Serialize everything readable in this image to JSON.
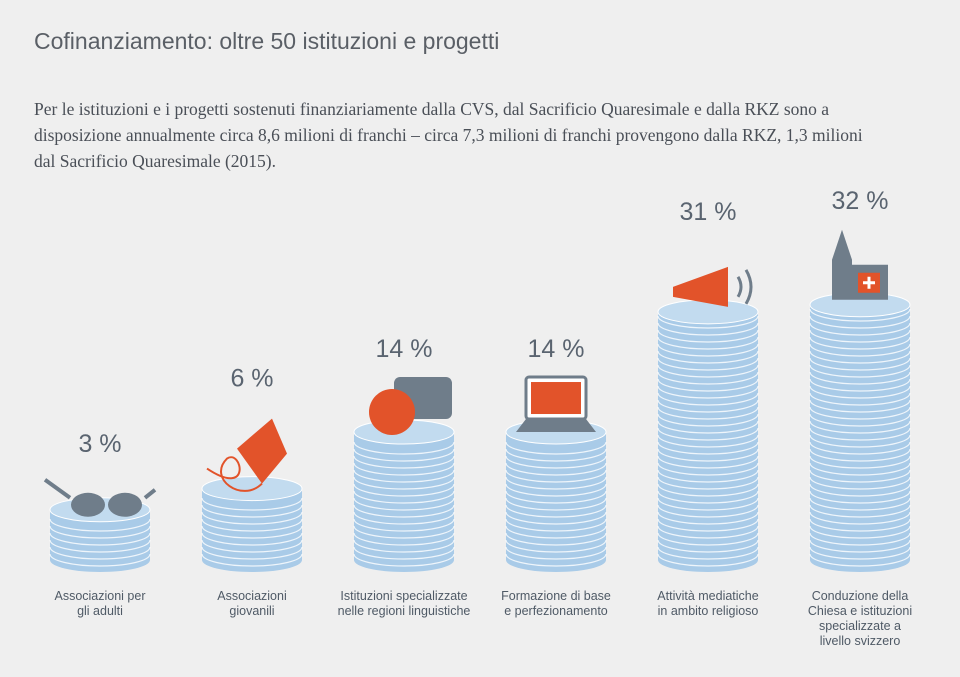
{
  "chart_data": {
    "type": "bar",
    "title": "Cofinanziamento: oltre 50 istituzioni e progetti",
    "subtitle": "Per le istituzioni e i progetti sostenuti finanziariamente dalla CVS, dal Sacrificio Quaresimale e dalla RKZ sono a disposizione annualmente circa 8,6 milioni di franchi – circa 7,3 milioni di franchi provengono dalla RKZ, 1,3 milioni dal Sacrificio Quaresimale (2015).",
    "categories": [
      "Associazioni per\ngli adulti",
      "Associazioni\ngiovanili",
      "Istituzioni specializzate\nnelle regioni linguistiche",
      "Formazione di base\ne perfezionamento",
      "Attività mediatiche\nin ambito religioso",
      "Conduzione della\nChiesa e istituzioni\nspecializzate a\nlivello svizzero"
    ],
    "values": [
      3,
      6,
      14,
      14,
      31,
      32
    ],
    "value_labels": [
      "3 %",
      "6 %",
      "14 %",
      "14 %",
      "31 %",
      "32 %"
    ],
    "color": "#a9cbe8"
  }
}
